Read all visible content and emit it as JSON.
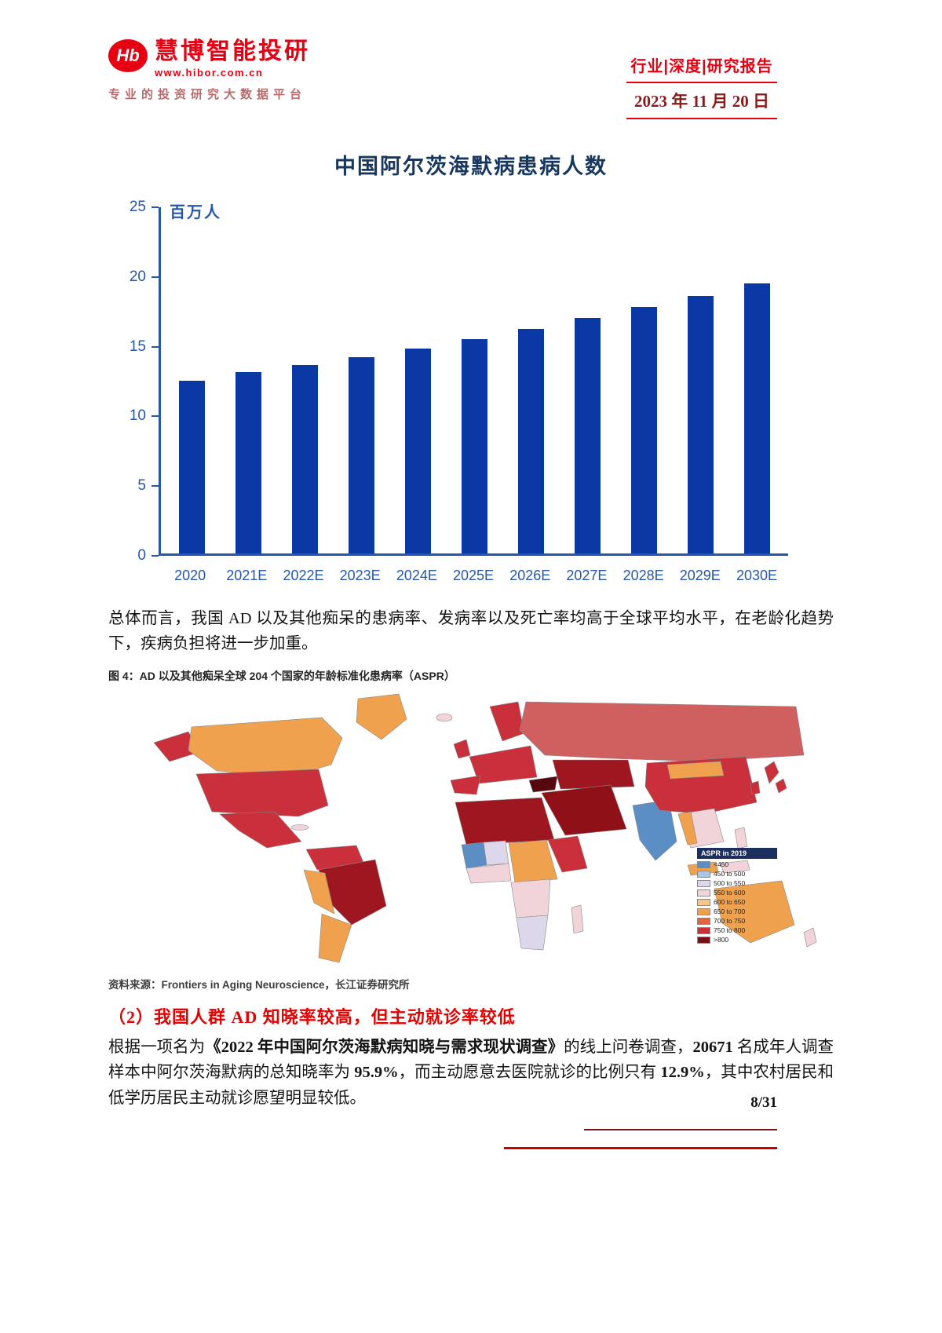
{
  "header": {
    "logo_mark": "Hb",
    "logo_text": "慧博智能投研",
    "logo_url": "www.hibor.com.cn",
    "tagline": "专业的投资研究大数据平台",
    "report_tags": "行业|深度|研究报告",
    "date": "2023 年 11 月 20 日"
  },
  "chart_data": {
    "type": "bar",
    "title": "中国阿尔茨海默病患病人数",
    "ylabel": "百万人",
    "xlabel": "",
    "categories": [
      "2020",
      "2021E",
      "2022E",
      "2023E",
      "2024E",
      "2025E",
      "2026E",
      "2027E",
      "2028E",
      "2029E",
      "2030E"
    ],
    "values": [
      12.5,
      13.1,
      13.6,
      14.2,
      14.8,
      15.5,
      16.2,
      17.0,
      17.8,
      18.6,
      19.5
    ],
    "ylim": [
      0,
      25
    ],
    "yticks": [
      0,
      5,
      10,
      15,
      20,
      25
    ],
    "grid": false,
    "legend_position": "none",
    "bar_color": "#0a38a5",
    "axis_color": "#2457ad"
  },
  "intro_paragraph": "总体而言，我国 AD 以及其他痴呆的患病率、发病率以及死亡率均高于全球平均水平，在老龄化趋势下，疾病负担将进一步加重。",
  "figure": {
    "caption": "图 4：AD 以及其他痴呆全球 204 个国家的年龄标准化患病率（ASPR）",
    "legend": {
      "title": "ASPR in 2019",
      "items": [
        {
          "label": "<450",
          "color": "#5b8ec4"
        },
        {
          "label": "450 to 500",
          "color": "#aac6e2"
        },
        {
          "label": "500 to 550",
          "color": "#dcd7ea"
        },
        {
          "label": "550 to 600",
          "color": "#f1d3da"
        },
        {
          "label": "600 to 650",
          "color": "#f3c78c"
        },
        {
          "label": "650 to 700",
          "color": "#efa14e"
        },
        {
          "label": "700 to 750",
          "color": "#e2633d"
        },
        {
          "label": "750 to 800",
          "color": "#c9303c"
        },
        {
          "label": ">800",
          "color": "#7d0f14"
        }
      ]
    },
    "source": "资料来源：Frontiers in Aging Neuroscience，长江证券研究所"
  },
  "section": {
    "heading": "（2）我国人群 AD 知晓率较高，但主动就诊率较低",
    "body_segments": [
      {
        "text": "根据一项名为",
        "bold": false
      },
      {
        "text": "《2022 年中国阿尔茨海默病知晓与需求现状调查》",
        "bold": true
      },
      {
        "text": "的线上问卷调查，",
        "bold": false
      },
      {
        "text": "20671",
        "bold": true
      },
      {
        "text": " 名成年人调查样本中阿尔茨海默病的总知晓率为 ",
        "bold": false
      },
      {
        "text": "95.9%",
        "bold": true
      },
      {
        "text": "，而主动愿意去医院就诊的比例只有 ",
        "bold": false
      },
      {
        "text": "12.9%",
        "bold": true
      },
      {
        "text": "，其中农村居民和低学历居民主动就诊愿望明显较低。",
        "bold": false
      }
    ]
  },
  "footer": {
    "page_number": "8/31"
  }
}
